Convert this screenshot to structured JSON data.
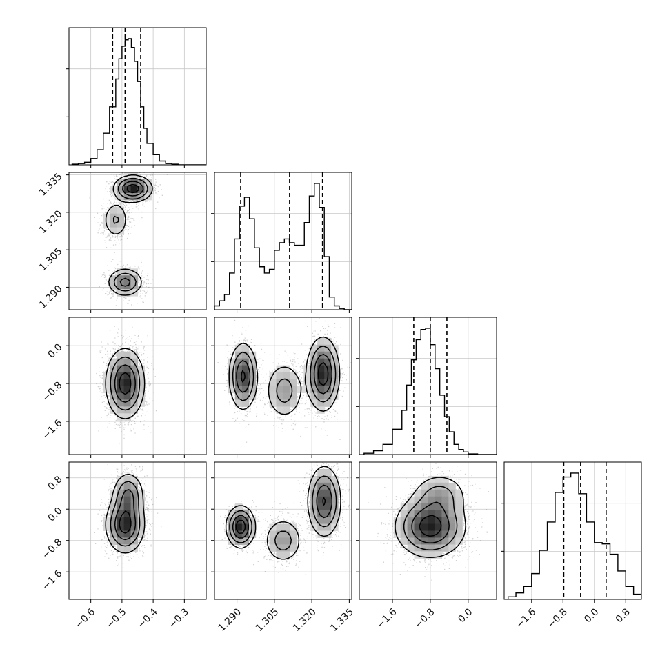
{
  "chart_data": {
    "type": "corner",
    "description_of_grid": "4x4 lower-triangular corner plot of a 4-parameter posterior sample",
    "parameters": [
      {
        "name": "",
        "range": [
          -0.67,
          -0.23
        ],
        "ticks": [
          -0.6,
          -0.5,
          -0.4,
          -0.3
        ],
        "tick_labels": [
          "−0.6",
          "−0.5",
          "−0.4",
          "−0.3"
        ],
        "quantiles": [
          -0.53,
          -0.49,
          -0.44
        ],
        "modes": [
          {
            "mu": -0.49,
            "sd": 0.03,
            "w": 1
          }
        ]
      },
      {
        "name": "",
        "range": [
          1.281,
          1.336
        ],
        "ticks": [
          1.29,
          1.305,
          1.32,
          1.335
        ],
        "tick_labels": [
          "1.290",
          "1.305",
          "1.320",
          "1.335"
        ],
        "quantiles": [
          1.2915,
          1.3111,
          1.3243
        ],
        "modes": [
          {
            "mu": 1.292,
            "sd": 0.0028,
            "w": 0.32
          },
          {
            "mu": 1.309,
            "sd": 0.004,
            "w": 0.16
          },
          {
            "mu": 1.3245,
            "sd": 0.0032,
            "w": 0.52
          }
        ]
      },
      {
        "name": "",
        "range": [
          -2.3,
          0.6
        ],
        "ticks": [
          -1.6,
          -0.8,
          0.0
        ],
        "tick_labels": [
          "−1.6",
          "−0.8",
          "0.0"
        ],
        "quantiles": [
          -1.15,
          -0.8,
          -0.45
        ],
        "modes": [
          {
            "mu": -0.78,
            "sd": 0.36,
            "w": 1
          }
        ]
      },
      {
        "name": "",
        "range": [
          -2.3,
          1.2
        ],
        "ticks": [
          -1.6,
          -0.8,
          0.0,
          0.8
        ],
        "tick_labels": [
          "−1.6",
          "−0.8",
          "0.0",
          "0.8"
        ],
        "quantiles": [
          -0.78,
          -0.35,
          0.3
        ],
        "modes": [
          {
            "mu": -0.45,
            "sd": 0.32,
            "w": 0.72
          },
          {
            "mu": 0.35,
            "sd": 0.35,
            "w": 0.28
          }
        ]
      }
    ],
    "histograms": [
      {
        "param": 0,
        "bins": [
          -0.66,
          -0.64,
          -0.62,
          -0.6,
          -0.58,
          -0.56,
          -0.54,
          -0.52,
          -0.51,
          -0.5,
          -0.49,
          -0.48,
          -0.47,
          -0.46,
          -0.45,
          -0.44,
          -0.43,
          -0.42,
          -0.4,
          -0.38,
          -0.36,
          -0.34,
          -0.32,
          -0.3
        ],
        "counts": [
          0.005,
          0.01,
          0.02,
          0.05,
          0.12,
          0.25,
          0.46,
          0.68,
          0.84,
          0.94,
          0.99,
          1.0,
          0.93,
          0.82,
          0.66,
          0.46,
          0.29,
          0.17,
          0.08,
          0.03,
          0.01,
          0.005,
          0.0,
          0.0
        ]
      },
      {
        "param": 1,
        "bins": [
          1.281,
          1.283,
          1.285,
          1.287,
          1.289,
          1.291,
          1.293,
          1.295,
          1.297,
          1.299,
          1.301,
          1.303,
          1.305,
          1.307,
          1.309,
          1.311,
          1.313,
          1.315,
          1.317,
          1.319,
          1.321,
          1.323,
          1.325,
          1.327,
          1.329,
          1.331,
          1.333,
          1.335
        ],
        "counts": [
          0.03,
          0.07,
          0.12,
          0.29,
          0.56,
          0.82,
          0.89,
          0.72,
          0.49,
          0.34,
          0.29,
          0.32,
          0.47,
          0.53,
          0.56,
          0.53,
          0.51,
          0.51,
          0.69,
          0.9,
          1.0,
          0.81,
          0.42,
          0.1,
          0.03,
          0.01,
          0.0,
          0.0
        ]
      },
      {
        "param": 2,
        "bins": [
          -2.2,
          -2.0,
          -1.8,
          -1.6,
          -1.4,
          -1.3,
          -1.2,
          -1.1,
          -1.0,
          -0.9,
          -0.8,
          -0.7,
          -0.6,
          -0.5,
          -0.4,
          -0.3,
          -0.2,
          -0.1,
          0.0,
          0.2,
          0.4
        ],
        "counts": [
          0.01,
          0.03,
          0.08,
          0.2,
          0.35,
          0.55,
          0.75,
          0.91,
          0.99,
          1.0,
          0.87,
          0.68,
          0.47,
          0.3,
          0.18,
          0.08,
          0.04,
          0.02,
          0.005,
          0.0,
          0.0
        ]
      },
      {
        "param": 3,
        "bins": [
          -2.2,
          -2.0,
          -1.8,
          -1.6,
          -1.4,
          -1.2,
          -1.0,
          -0.8,
          -0.6,
          -0.4,
          -0.2,
          0.0,
          0.2,
          0.4,
          0.6,
          0.8,
          1.0
        ],
        "counts": [
          0.02,
          0.05,
          0.1,
          0.2,
          0.38,
          0.6,
          0.83,
          0.95,
          0.98,
          0.82,
          0.6,
          0.44,
          0.43,
          0.35,
          0.22,
          0.1,
          0.04
        ]
      }
    ],
    "scatter_points_per_panel": 3500,
    "contour_levels": [
      0.12,
      0.3,
      0.55,
      0.82
    ],
    "grid": true,
    "legend": "none",
    "xlabels": [
      "",
      "",
      "",
      ""
    ],
    "ylabels": [
      "",
      "",
      ""
    ]
  }
}
